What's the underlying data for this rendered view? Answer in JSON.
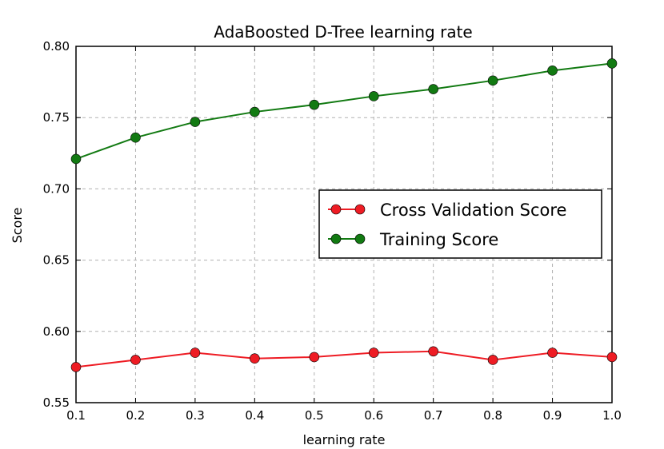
{
  "chart_data": {
    "type": "line",
    "title": "AdaBoosted D-Tree learning rate",
    "xlabel": "learning rate",
    "ylabel": "Score",
    "xlim": [
      0.1,
      1.0
    ],
    "ylim": [
      0.55,
      0.8
    ],
    "x_ticks": [
      "0.1",
      "0.2",
      "0.3",
      "0.4",
      "0.5",
      "0.6",
      "0.7",
      "0.8",
      "0.9",
      "1.0"
    ],
    "y_ticks": [
      "0.55",
      "0.60",
      "0.65",
      "0.70",
      "0.75",
      "0.80"
    ],
    "grid": true,
    "legend_position": "center-right",
    "x": [
      0.1,
      0.2,
      0.3,
      0.4,
      0.5,
      0.6,
      0.7,
      0.8,
      0.9,
      1.0
    ],
    "series": [
      {
        "name": "Cross Validation Score",
        "color": "#ee1c24",
        "values": [
          0.575,
          0.58,
          0.585,
          0.581,
          0.582,
          0.585,
          0.586,
          0.58,
          0.585,
          0.582
        ]
      },
      {
        "name": "Training Score",
        "color": "#127a12",
        "values": [
          0.721,
          0.736,
          0.747,
          0.754,
          0.759,
          0.765,
          0.77,
          0.776,
          0.783,
          0.788
        ]
      }
    ]
  }
}
